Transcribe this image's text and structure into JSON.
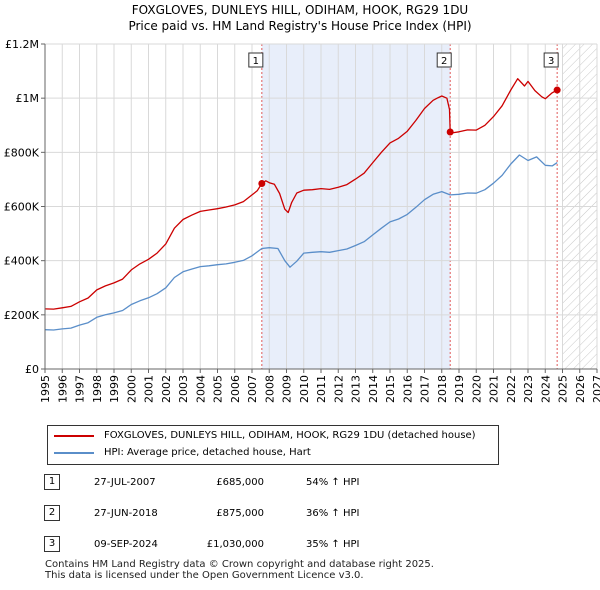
{
  "title": {
    "line1": "FOXGLOVES, DUNLEYS HILL, ODIHAM, HOOK, RG29 1DU",
    "line2": "Price paid vs. HM Land Registry's House Price Index (HPI)"
  },
  "colors": {
    "property": "#cc0000",
    "hpi": "#5a8ec9",
    "shade": "#e8eefa",
    "marker_line": "#e05a5a"
  },
  "chart_data": {
    "type": "line",
    "title": "Price paid vs. HM Land Registry's House Price Index (HPI)",
    "xlabel": "",
    "ylabel": "",
    "xlim": [
      1995,
      2027
    ],
    "ylim": [
      0,
      1200000
    ],
    "x_ticks": [
      "1995",
      "1996",
      "1997",
      "1998",
      "1999",
      "2000",
      "2001",
      "2002",
      "2003",
      "2004",
      "2005",
      "2006",
      "2007",
      "2008",
      "2009",
      "2010",
      "2011",
      "2012",
      "2013",
      "2014",
      "2015",
      "2016",
      "2017",
      "2018",
      "2019",
      "2020",
      "2021",
      "2022",
      "2023",
      "2024",
      "2025",
      "2026",
      "2027"
    ],
    "y_ticks": [
      {
        "value": 0,
        "label": "£0"
      },
      {
        "value": 200000,
        "label": "£200K"
      },
      {
        "value": 400000,
        "label": "£400K"
      },
      {
        "value": 600000,
        "label": "£600K"
      },
      {
        "value": 800000,
        "label": "£800K"
      },
      {
        "value": 1000000,
        "label": "£1M"
      },
      {
        "value": 1200000,
        "label": "£1.2M"
      }
    ],
    "grid": true,
    "shaded_range": [
      2007.57,
      2018.49
    ],
    "hatched_from": 2025.0,
    "series": [
      {
        "name": "FOXGLOVES, DUNLEYS HILL, ODIHAM, HOOK, RG29 1DU (detached house)",
        "x": [
          1995.0,
          1995.5,
          1996.0,
          1996.5,
          1997.0,
          1997.5,
          1998.0,
          1998.5,
          1999.0,
          1999.5,
          2000.0,
          2000.5,
          2001.0,
          2001.5,
          2002.0,
          2002.5,
          2003.0,
          2003.5,
          2004.0,
          2004.5,
          2005.0,
          2005.5,
          2006.0,
          2006.5,
          2007.0,
          2007.3,
          2007.57,
          2007.8,
          2008.0,
          2008.3,
          2008.6,
          2008.9,
          2009.1,
          2009.3,
          2009.6,
          2010.0,
          2010.5,
          2011.0,
          2011.5,
          2012.0,
          2012.5,
          2013.0,
          2013.5,
          2014.0,
          2014.5,
          2015.0,
          2015.5,
          2016.0,
          2016.5,
          2017.0,
          2017.5,
          2017.8,
          2018.0,
          2018.3,
          2018.45,
          2018.49,
          2018.7,
          2019.0,
          2019.5,
          2020.0,
          2020.5,
          2021.0,
          2021.5,
          2022.0,
          2022.4,
          2022.8,
          2023.0,
          2023.4,
          2023.8,
          2024.0,
          2024.4,
          2024.69
        ],
        "values": [
          222000,
          221000,
          226000,
          231000,
          248000,
          262000,
          292000,
          307000,
          318000,
          332000,
          366000,
          388000,
          405000,
          428000,
          462000,
          520000,
          552000,
          568000,
          582000,
          587000,
          592000,
          598000,
          606000,
          618000,
          643000,
          658000,
          685000,
          695000,
          688000,
          682000,
          648000,
          590000,
          578000,
          615000,
          650000,
          660000,
          662000,
          666000,
          663000,
          671000,
          681000,
          701000,
          723000,
          762000,
          800000,
          835000,
          852000,
          878000,
          918000,
          962000,
          992000,
          1002000,
          1008000,
          1000000,
          958000,
          875000,
          873000,
          876000,
          883000,
          882000,
          900000,
          932000,
          972000,
          1030000,
          1072000,
          1045000,
          1062000,
          1028000,
          1005000,
          998000,
          1020000,
          1030000
        ]
      },
      {
        "name": "HPI: Average price, detached house, Hart",
        "x": [
          1995.0,
          1995.5,
          1996.0,
          1996.5,
          1997.0,
          1997.5,
          1998.0,
          1998.5,
          1999.0,
          1999.5,
          2000.0,
          2000.5,
          2001.0,
          2001.5,
          2002.0,
          2002.5,
          2003.0,
          2003.5,
          2004.0,
          2004.5,
          2005.0,
          2005.5,
          2006.0,
          2006.5,
          2007.0,
          2007.57,
          2008.0,
          2008.5,
          2008.9,
          2009.2,
          2009.6,
          2010.0,
          2010.5,
          2011.0,
          2011.5,
          2012.0,
          2012.5,
          2013.0,
          2013.5,
          2014.0,
          2014.5,
          2015.0,
          2015.5,
          2016.0,
          2016.5,
          2017.0,
          2017.5,
          2018.0,
          2018.49,
          2019.0,
          2019.5,
          2020.0,
          2020.5,
          2021.0,
          2021.5,
          2022.0,
          2022.5,
          2023.0,
          2023.5,
          2024.0,
          2024.4,
          2024.69
        ],
        "values": [
          145000,
          144000,
          148000,
          151000,
          162000,
          171000,
          191000,
          200000,
          207000,
          216000,
          238000,
          252000,
          263000,
          278000,
          300000,
          338000,
          359000,
          369000,
          378000,
          381000,
          385000,
          388000,
          394000,
          401000,
          418000,
          445000,
          448000,
          445000,
          400000,
          376000,
          398000,
          428000,
          431000,
          433000,
          431000,
          437000,
          443000,
          456000,
          470000,
          495000,
          520000,
          543000,
          554000,
          571000,
          597000,
          625000,
          645000,
          655000,
          643000,
          645000,
          650000,
          649000,
          662000,
          686000,
          715000,
          757000,
          790000,
          770000,
          783000,
          752000,
          750000,
          762000
        ]
      }
    ],
    "sales": [
      {
        "label": "1",
        "x": 2007.57,
        "value": 685000
      },
      {
        "label": "2",
        "x": 2018.49,
        "value": 875000
      },
      {
        "label": "3",
        "x": 2024.69,
        "value": 1030000
      }
    ]
  },
  "legend": {
    "property_label": "FOXGLOVES, DUNLEYS HILL, ODIHAM, HOOK, RG29 1DU (detached house)",
    "hpi_label": "HPI: Average price, detached house, Hart"
  },
  "sales_table": [
    {
      "num": "1",
      "date": "27-JUL-2007",
      "price": "£685,000",
      "hpi": "54% ↑ HPI"
    },
    {
      "num": "2",
      "date": "27-JUN-2018",
      "price": "£875,000",
      "hpi": "36% ↑ HPI"
    },
    {
      "num": "3",
      "date": "09-SEP-2024",
      "price": "£1,030,000",
      "hpi": "35% ↑ HPI"
    }
  ],
  "footer": {
    "line1": "Contains HM Land Registry data © Crown copyright and database right 2025.",
    "line2": "This data is licensed under the Open Government Licence v3.0."
  }
}
